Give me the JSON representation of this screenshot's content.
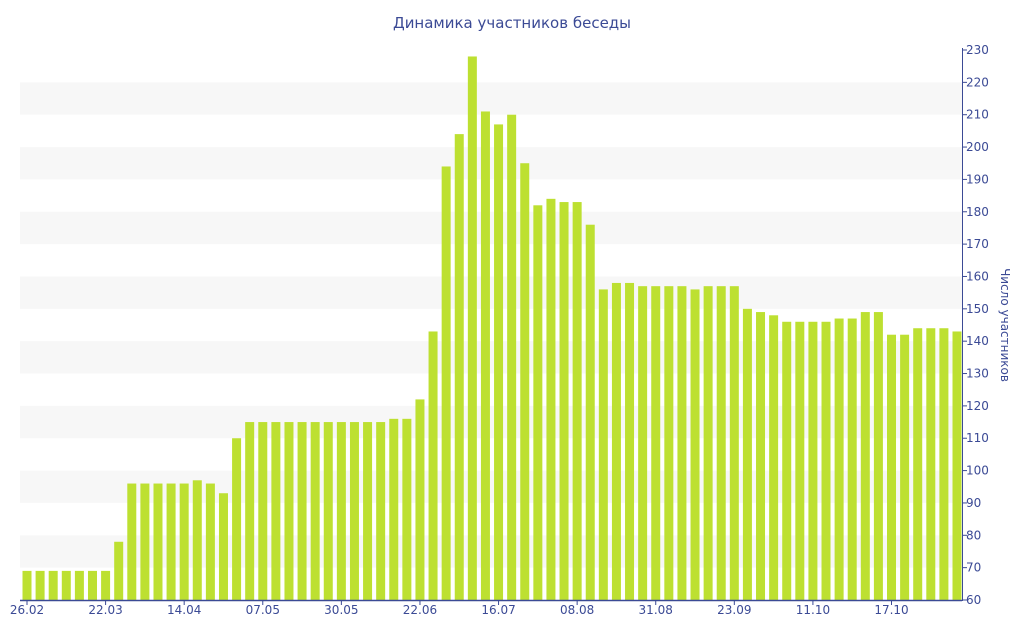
{
  "chart_data": {
    "type": "bar",
    "title": "Динамика участников беседы",
    "xlabel": "",
    "ylabel": "Число участников",
    "ylim": [
      60,
      230
    ],
    "yticks": [
      60,
      70,
      80,
      90,
      100,
      110,
      120,
      130,
      140,
      150,
      160,
      170,
      180,
      190,
      200,
      210,
      220,
      230
    ],
    "y_axis_position": "right",
    "grid": "alternating horizontal bands",
    "bar_color": "#bde031",
    "text_color": "#3b4a95",
    "xtick_labels": [
      {
        "index": 0,
        "label": "26.02"
      },
      {
        "index": 6,
        "label": "22.03"
      },
      {
        "index": 12,
        "label": "14.04"
      },
      {
        "index": 18,
        "label": "07.05"
      },
      {
        "index": 24,
        "label": "30.05"
      },
      {
        "index": 30,
        "label": "22.06"
      },
      {
        "index": 36,
        "label": "16.07"
      },
      {
        "index": 42,
        "label": "08.08"
      },
      {
        "index": 48,
        "label": "31.08"
      },
      {
        "index": 54,
        "label": "23.09"
      },
      {
        "index": 60,
        "label": "11.10"
      },
      {
        "index": 66,
        "label": "17.10"
      }
    ],
    "values": [
      69,
      69,
      69,
      69,
      69,
      69,
      69,
      78,
      96,
      96,
      96,
      96,
      96,
      97,
      96,
      93,
      110,
      115,
      115,
      115,
      115,
      115,
      115,
      115,
      115,
      115,
      115,
      115,
      116,
      116,
      122,
      143,
      194,
      204,
      228,
      211,
      207,
      210,
      195,
      182,
      184,
      183,
      183,
      176,
      156,
      158,
      158,
      157,
      157,
      157,
      157,
      156,
      157,
      157,
      157,
      150,
      149,
      148,
      146,
      146,
      146,
      146,
      147,
      147,
      149,
      149,
      142,
      142,
      144,
      144,
      144,
      143
    ]
  }
}
